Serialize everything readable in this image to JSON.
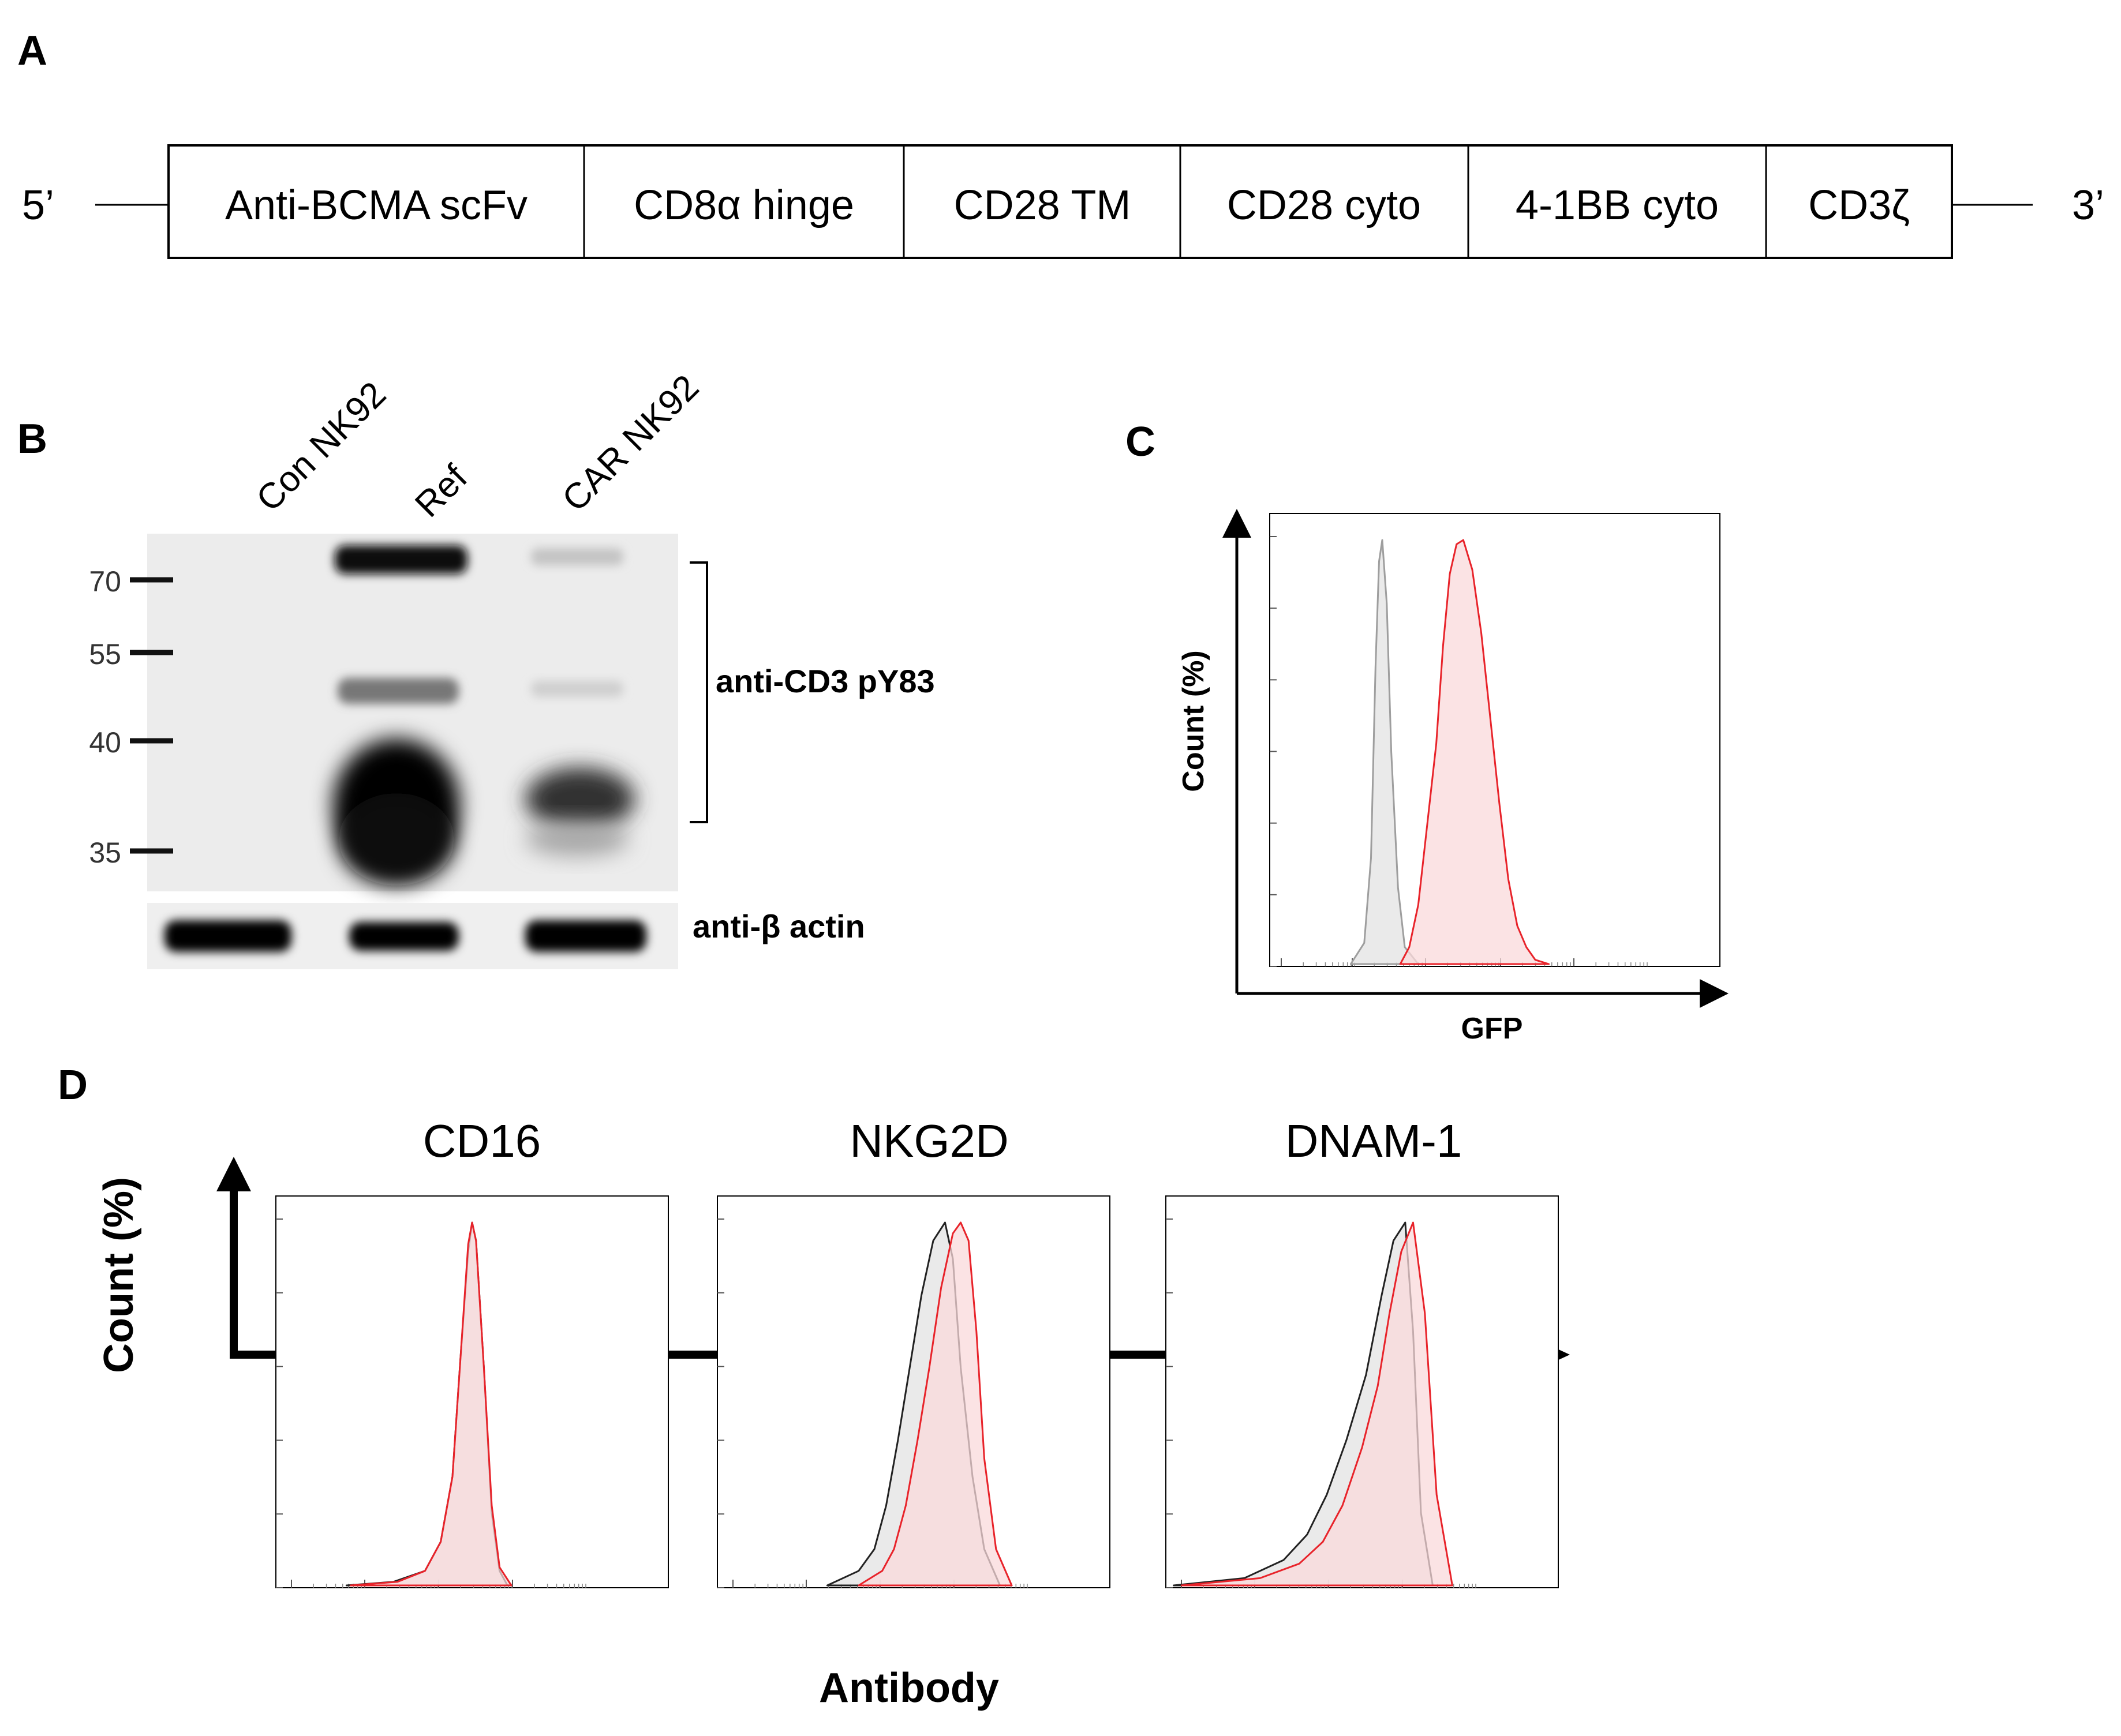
{
  "panels": {
    "A": {
      "label": "A",
      "five_prime": "5’",
      "three_prime": "3’",
      "segments": [
        "Anti-BCMA scFv",
        "CD8α hinge",
        "CD28 TM",
        "CD28 cyto",
        "4-1BB cyto",
        "CD3ζ"
      ]
    },
    "B": {
      "label": "B",
      "lanes": [
        "Con NK92",
        "Ref",
        "CAR NK92"
      ],
      "markers": [
        "70",
        "55",
        "40",
        "35"
      ],
      "bracket_label": "anti-CD3 pY83",
      "actin_label": "anti-β actin"
    },
    "C": {
      "label": "C",
      "ylabel": "Count (%)",
      "xlabel": "GFP"
    },
    "D": {
      "label": "D",
      "ylabel": "Count (%)",
      "xlabel": "Antibody",
      "subplots": [
        "CD16",
        "NKG2D",
        "DNAM-1"
      ]
    }
  },
  "colors": {
    "control": "#9e9e9e",
    "car": "#e8232a",
    "car_fill": "#f9d9db",
    "control_fill": "#e6e6e6"
  },
  "chart_data": [
    {
      "type": "area",
      "panel": "C",
      "xlabel": "GFP",
      "ylabel": "Count (%)",
      "xlim": [
        0,
        100
      ],
      "ylim": [
        0,
        100
      ],
      "series": [
        {
          "x": [
            18,
            21,
            22.5,
            23.5,
            24.3,
            25,
            26,
            27,
            28.5,
            30,
            33
          ],
          "values": [
            0,
            5,
            25,
            70,
            95,
            100,
            85,
            50,
            18,
            4,
            0
          ]
        },
        {
          "x": [
            29,
            31,
            33,
            35,
            37,
            38.5,
            40,
            41.5,
            43,
            45,
            47,
            49,
            51,
            53,
            55,
            57,
            59,
            62
          ],
          "values": [
            0,
            4,
            14,
            33,
            52,
            75,
            92,
            99,
            100,
            93,
            78,
            58,
            38,
            20,
            9,
            4,
            1,
            0
          ]
        }
      ]
    },
    {
      "type": "area",
      "panel": "D",
      "title": "CD16",
      "xlim": [
        0,
        100
      ],
      "ylim": [
        0,
        100
      ],
      "series": [
        {
          "x": [
            18,
            30,
            38,
            42,
            45,
            47,
            49,
            50,
            51,
            53,
            55,
            57,
            59
          ],
          "values": [
            0,
            1,
            4,
            12,
            30,
            62,
            92,
            100,
            95,
            60,
            20,
            4,
            0
          ]
        },
        {
          "x": [
            19,
            31,
            38,
            42,
            45,
            47,
            49,
            50,
            51,
            53,
            55,
            57,
            60
          ],
          "values": [
            0,
            1,
            4,
            12,
            30,
            62,
            94,
            100,
            95,
            60,
            22,
            5,
            0
          ]
        }
      ]
    },
    {
      "type": "area",
      "panel": "D",
      "title": "NKG2D",
      "xlim": [
        0,
        100
      ],
      "ylim": [
        0,
        100
      ],
      "series": [
        {
          "x": [
            28,
            36,
            40,
            43,
            46,
            49,
            52,
            55,
            58,
            60,
            62,
            65,
            68,
            72
          ],
          "values": [
            0,
            4,
            10,
            22,
            40,
            60,
            80,
            95,
            100,
            90,
            60,
            30,
            10,
            0
          ]
        },
        {
          "x": [
            36,
            42,
            45,
            48,
            51,
            54,
            57,
            60,
            62,
            64,
            66,
            68,
            71,
            75
          ],
          "values": [
            0,
            4,
            10,
            22,
            40,
            60,
            82,
            97,
            100,
            95,
            70,
            35,
            10,
            0
          ]
        }
      ]
    },
    {
      "type": "area",
      "panel": "D",
      "title": "DNAM-1",
      "xlim": [
        0,
        100
      ],
      "ylim": [
        0,
        100
      ],
      "series": [
        {
          "x": [
            2,
            20,
            30,
            36,
            41,
            46,
            51,
            55,
            58,
            61,
            63,
            65,
            68
          ],
          "values": [
            0,
            2,
            7,
            14,
            25,
            40,
            58,
            80,
            95,
            100,
            70,
            20,
            0
          ]
        },
        {
          "x": [
            4,
            24,
            34,
            40,
            45,
            50,
            54,
            57,
            60,
            63,
            66,
            69,
            73
          ],
          "values": [
            0,
            2,
            6,
            12,
            22,
            38,
            55,
            75,
            92,
            100,
            75,
            25,
            0
          ]
        }
      ]
    }
  ]
}
